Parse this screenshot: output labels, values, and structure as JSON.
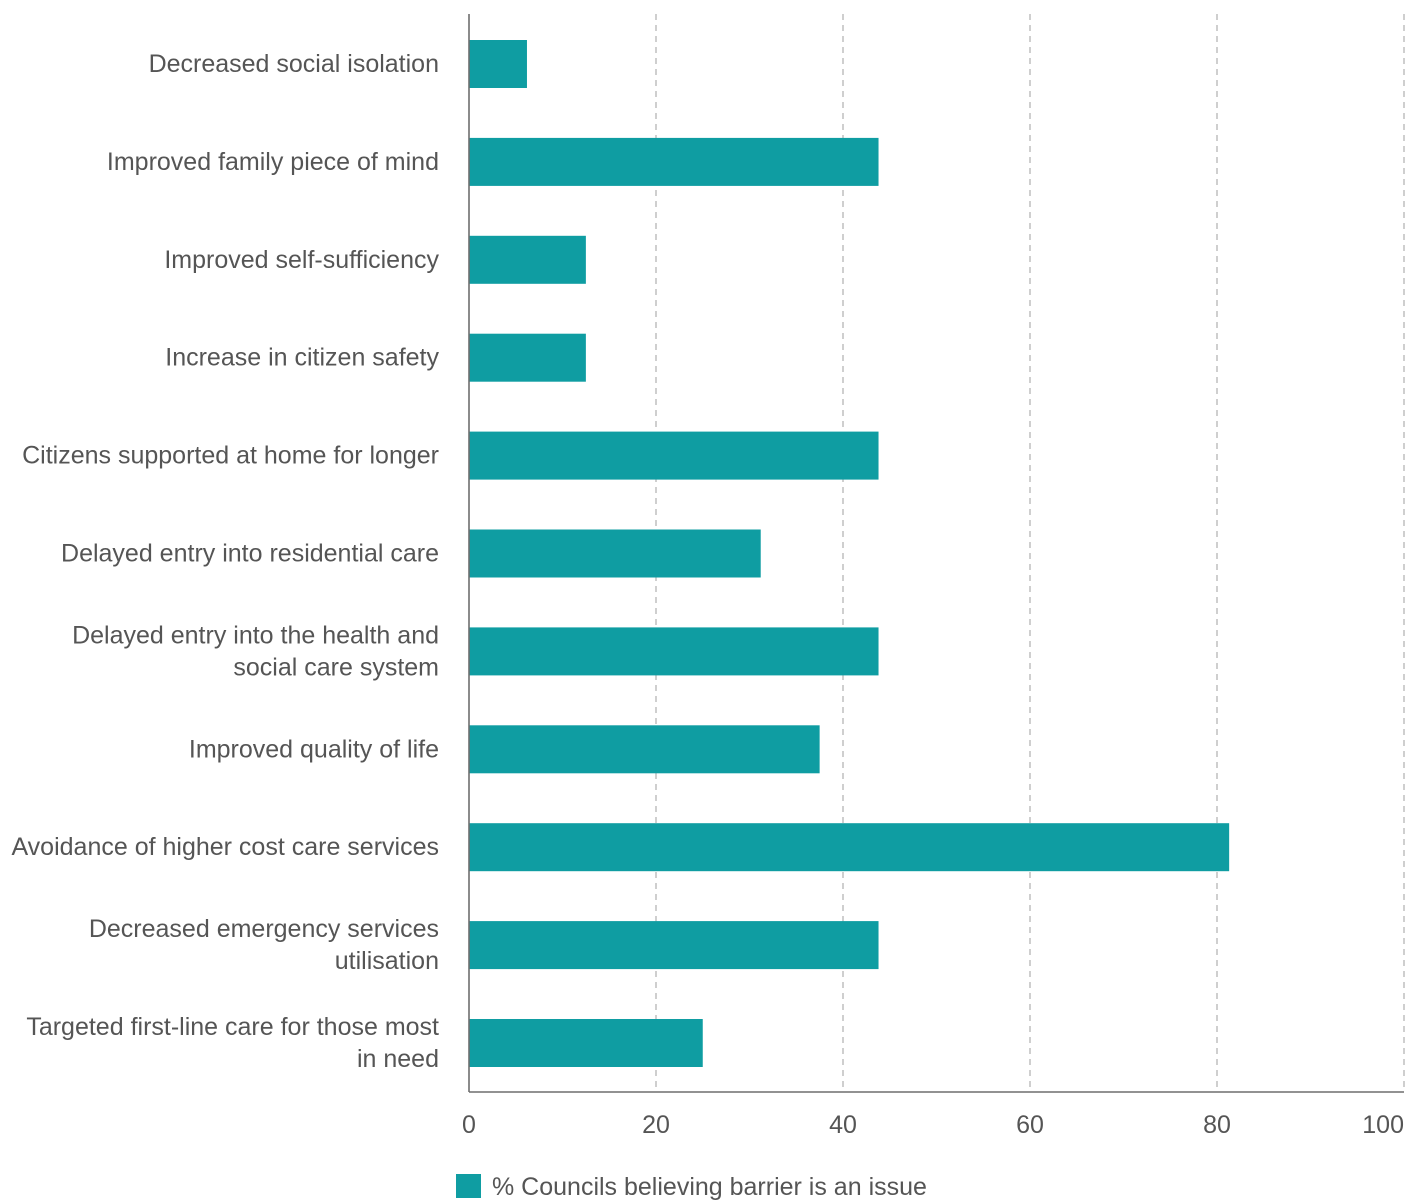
{
  "chart_data": {
    "type": "bar",
    "orientation": "horizontal",
    "categories": [
      "Decreased social isolation",
      "Improved family piece of mind",
      "Improved self-sufficiency",
      "Increase in citizen safety",
      "Citizens supported at home for longer",
      "Delayed entry into residential care",
      "Delayed entry into the health and social care system",
      "Improved quality of life",
      "Avoidance of higher cost care services",
      "Decreased emergency services utilisation",
      "Targeted first-line care for those most in need"
    ],
    "category_lines": [
      [
        "Decreased social isolation"
      ],
      [
        "Improved family piece of mind"
      ],
      [
        "Improved self-sufficiency"
      ],
      [
        "Increase in citizen safety"
      ],
      [
        "Citizens supported at home for longer"
      ],
      [
        "Delayed entry into residential care"
      ],
      [
        "Delayed entry into the health and",
        "social care system"
      ],
      [
        "Improved quality of life"
      ],
      [
        "Avoidance of higher cost care services"
      ],
      [
        "Decreased emergency services",
        "utilisation"
      ],
      [
        "Targeted first-line care for those most",
        "in need"
      ]
    ],
    "series": [
      {
        "name": "% Councils believing barrier is an issue",
        "color": "#0f9da2",
        "values": [
          6.2,
          43.8,
          12.5,
          12.5,
          43.8,
          31.2,
          43.8,
          37.5,
          81.3,
          43.8,
          25.0
        ]
      }
    ],
    "xlim": [
      0,
      100
    ],
    "xticks": [
      0,
      20,
      40,
      60,
      80,
      100
    ],
    "xlabel": "",
    "ylabel": "",
    "grid": "vertical-dashed",
    "legend_position": "bottom"
  }
}
